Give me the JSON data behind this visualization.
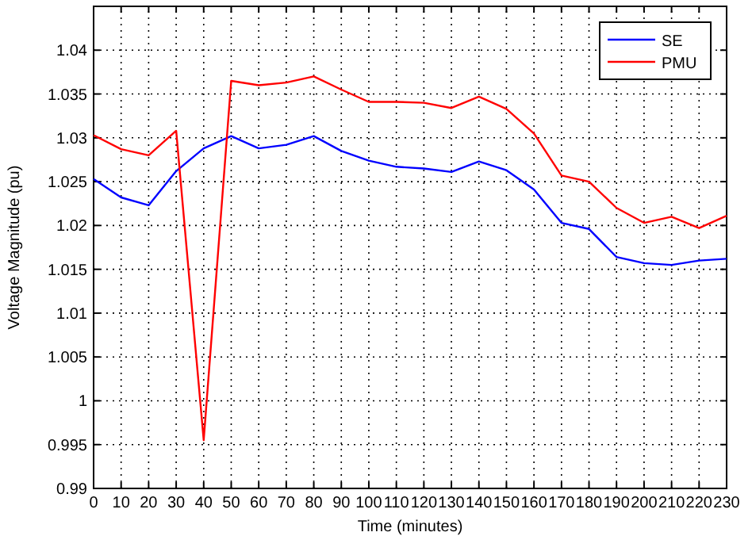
{
  "chart_data": {
    "type": "line",
    "xlabel": "Time (minutes)",
    "ylabel": "Voltage Magnitude (pu)",
    "x": [
      0,
      10,
      20,
      30,
      40,
      50,
      60,
      70,
      80,
      90,
      100,
      110,
      120,
      130,
      140,
      150,
      160,
      170,
      180,
      190,
      200,
      210,
      220,
      230
    ],
    "series": [
      {
        "name": "SE",
        "color": "#0000ff",
        "values": [
          1.0253,
          1.0232,
          1.0223,
          1.0262,
          1.0288,
          1.0302,
          1.0288,
          1.0292,
          1.0302,
          1.0285,
          1.0274,
          1.0267,
          1.0265,
          1.0261,
          1.0273,
          1.0263,
          1.0241,
          1.0203,
          1.0196,
          1.0164,
          1.0157,
          1.0155,
          1.016,
          1.0162
        ]
      },
      {
        "name": "PMU",
        "color": "#ff0000",
        "values": [
          1.0303,
          1.0287,
          1.028,
          1.0308,
          0.9955,
          1.0365,
          1.036,
          1.0363,
          1.037,
          1.0355,
          1.0341,
          1.0341,
          1.034,
          1.0334,
          1.0347,
          1.0333,
          1.0305,
          1.0257,
          1.025,
          1.022,
          1.0203,
          1.021,
          1.0197,
          1.0211
        ]
      }
    ],
    "xlim": [
      0,
      230
    ],
    "xticks": [
      0,
      10,
      20,
      30,
      40,
      50,
      60,
      70,
      80,
      90,
      100,
      110,
      120,
      130,
      140,
      150,
      160,
      170,
      180,
      190,
      200,
      210,
      220,
      230
    ],
    "ylim": [
      0.99,
      1.045
    ],
    "yticks": [
      0.99,
      0.995,
      1,
      1.005,
      1.01,
      1.015,
      1.02,
      1.025,
      1.03,
      1.035,
      1.04
    ],
    "grid": true,
    "legend": "top right",
    "marker": "none",
    "line_style": "solid"
  }
}
